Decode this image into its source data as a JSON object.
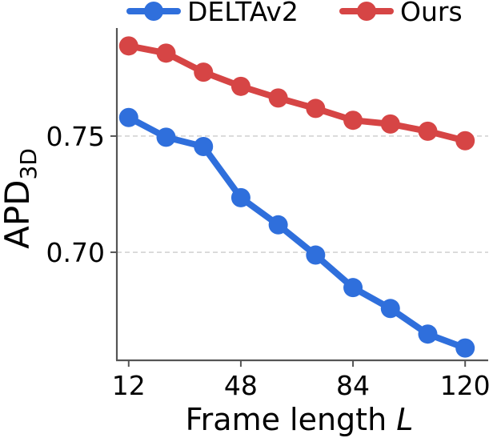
{
  "chart_data": {
    "type": "line",
    "x": [
      12,
      24,
      36,
      48,
      60,
      72,
      84,
      96,
      108,
      120
    ],
    "series": [
      {
        "name": "DELTAv2",
        "color": "#2f6fdc",
        "values": [
          0.758,
          0.7495,
          0.7455,
          0.7235,
          0.7118,
          0.6988,
          0.6848,
          0.6758,
          0.6648,
          0.6588
        ]
      },
      {
        "name": "Ours",
        "color": "#d64545",
        "values": [
          0.7888,
          0.7857,
          0.7775,
          0.7714,
          0.7664,
          0.7619,
          0.7568,
          0.7552,
          0.7521,
          0.748
        ]
      }
    ],
    "xlabel_main": "Frame length",
    "xlabel_var": "L",
    "ylabel_main": "APD",
    "ylabel_sub": "3D",
    "xticks": [
      12,
      48,
      84,
      120
    ],
    "yticks": [
      0.7,
      0.75
    ],
    "ytick_labels": [
      "0.70",
      "0.75"
    ],
    "xlim": [
      8.2,
      127.4
    ],
    "ylim": [
      0.6535,
      0.7965
    ],
    "grid": "horizontal dashed",
    "legend_position": "top"
  }
}
